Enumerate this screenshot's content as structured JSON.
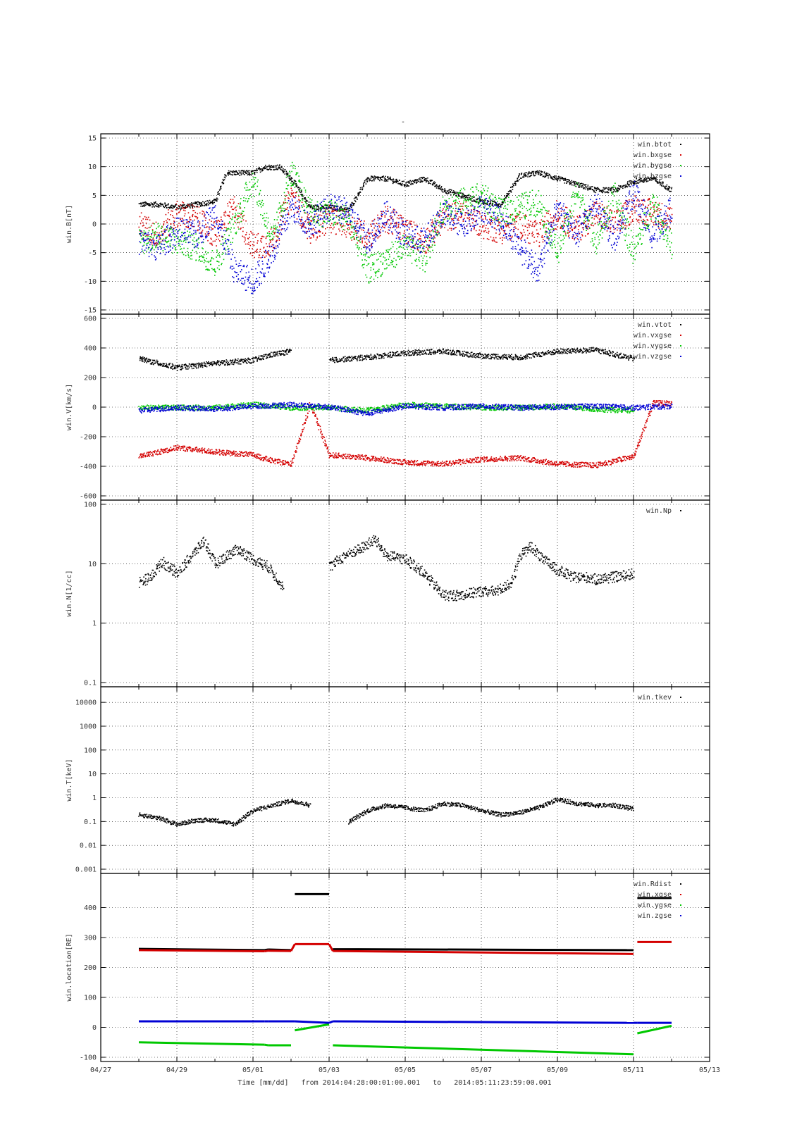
{
  "figure": {
    "title": "-",
    "xlabel_time": "Time [mm/dd]",
    "xlabel_from": "from 2014:04:28:00:01:00.001",
    "xlabel_to": "to",
    "xlabel_end": "2014:05:11:23:59:00.001",
    "x_ticks": [
      "04/27",
      "04/29",
      "05/01",
      "05/03",
      "05/05",
      "05/07",
      "05/09",
      "05/11",
      "05/13"
    ]
  },
  "colors": {
    "black": "#000000",
    "red": "#d40000",
    "green": "#00c800",
    "blue": "#0000d4",
    "grid": "#000000"
  },
  "chart_data": [
    {
      "type": "scatter",
      "ylabel": "win.B[nT]",
      "ylim": [
        -15,
        15
      ],
      "yscale": "linear",
      "y_ticks": [
        15,
        10,
        5,
        0,
        -5,
        -10,
        -15
      ],
      "x_unit": "day of month offset from 04/27",
      "xlim": [
        0,
        16
      ],
      "grid": true,
      "legend_position": "top-right",
      "series": [
        {
          "name": "win.btot",
          "color": "black",
          "x": [
            1,
            1.5,
            2,
            2.5,
            3,
            3.3,
            4,
            4.3,
            4.7,
            5,
            5.5,
            6,
            6.5,
            7,
            7.5,
            8,
            8.5,
            9,
            9.5,
            10,
            10.5,
            11,
            11.5,
            12,
            12.5,
            13,
            13.5,
            14,
            14.5,
            15
          ],
          "y": [
            3.5,
            3.5,
            3,
            3.5,
            4,
            9,
            9,
            10,
            10,
            8,
            3,
            3,
            2.5,
            8,
            8,
            7,
            8,
            6,
            5,
            4,
            3.5,
            8.5,
            9,
            8,
            7,
            6,
            6,
            7.5,
            8,
            6
          ]
        },
        {
          "name": "win.bxgse",
          "color": "red",
          "x": [
            1,
            1.5,
            2,
            2.5,
            3,
            3.5,
            4,
            4.5,
            5,
            5.5,
            6,
            6.5,
            7,
            7.5,
            8,
            8.5,
            9,
            9.5,
            10,
            10.5,
            11,
            11.5,
            12,
            12.5,
            13,
            13.5,
            14,
            14.5,
            15
          ],
          "y": [
            0,
            -2,
            2,
            1,
            -2,
            3,
            -4,
            -3,
            5,
            -1,
            1,
            0,
            -2,
            1,
            -1,
            -3,
            1,
            2,
            0,
            -1,
            0,
            -2,
            2,
            -1,
            2,
            0,
            3,
            2,
            1
          ]
        },
        {
          "name": "win.bygse",
          "color": "green",
          "x": [
            1,
            1.5,
            2,
            2.5,
            3,
            3.5,
            4,
            4.5,
            5,
            5.5,
            6,
            6.5,
            7,
            7.5,
            8,
            8.5,
            9,
            9.5,
            10,
            10.5,
            11,
            11.5,
            12,
            12.5,
            13,
            13.5,
            14,
            14.5,
            15
          ],
          "y": [
            -3,
            -2,
            -3,
            -4,
            -7,
            0,
            8,
            -3,
            9,
            2,
            2,
            1,
            -8,
            -6,
            -4,
            -6,
            3,
            4,
            5,
            2,
            3,
            4,
            -5,
            6,
            -3,
            5,
            -5,
            4,
            -4
          ]
        },
        {
          "name": "win.bzgse",
          "color": "blue",
          "x": [
            1,
            1.5,
            2,
            2.5,
            3,
            3.5,
            4,
            4.5,
            5,
            5.5,
            6,
            6.5,
            7,
            7.5,
            8,
            8.5,
            9,
            9.5,
            10,
            10.5,
            11,
            11.5,
            12,
            12.5,
            13,
            13.5,
            14,
            14.5,
            15
          ],
          "y": [
            -3,
            -4,
            -1,
            -2,
            2,
            -8,
            -10,
            -5,
            3,
            0,
            3,
            2,
            -3,
            2,
            -2,
            -3,
            2,
            0,
            3,
            1,
            -4,
            -8,
            3,
            -2,
            4,
            -3,
            6,
            -2,
            3
          ]
        }
      ]
    },
    {
      "type": "scatter",
      "ylabel": "win.V[km/s]",
      "ylim": [
        -600,
        600
      ],
      "yscale": "linear",
      "y_ticks": [
        600,
        400,
        200,
        0,
        -200,
        -400,
        -600
      ],
      "xlim": [
        0,
        16
      ],
      "grid": true,
      "legend_position": "top-right",
      "series": [
        {
          "name": "win.vtot",
          "color": "black",
          "x": [
            1,
            2,
            3,
            4,
            4.5,
            5,
            5.5,
            6,
            7,
            8,
            9,
            10,
            11,
            12,
            13,
            14
          ],
          "y": [
            330,
            270,
            300,
            320,
            360,
            380,
            null,
            320,
            340,
            370,
            380,
            350,
            340,
            380,
            390,
            330
          ],
          "gap_after": [
            5.8,
            5.9
          ]
        },
        {
          "name": "win.vxgse",
          "color": "red",
          "x": [
            1,
            2,
            3,
            4,
            4.5,
            5,
            5.5,
            6,
            7,
            8,
            9,
            10,
            11,
            12,
            13,
            14,
            14.5,
            15
          ],
          "y": [
            -330,
            -270,
            -300,
            -320,
            -360,
            -380,
            25,
            -320,
            -340,
            -370,
            -380,
            -350,
            -340,
            -380,
            -390,
            -330,
            30,
            30
          ]
        },
        {
          "name": "win.vygse",
          "color": "green",
          "x": [
            1,
            2,
            3,
            4,
            5,
            6,
            7,
            8,
            9,
            10,
            11,
            12,
            13,
            14
          ],
          "y": [
            0,
            0,
            0,
            20,
            0,
            0,
            -20,
            20,
            10,
            0,
            0,
            10,
            -10,
            -20
          ]
        },
        {
          "name": "win.vzgse",
          "color": "blue",
          "x": [
            1,
            2,
            3,
            4,
            5,
            6,
            7,
            8,
            9,
            10,
            11,
            12,
            13,
            14,
            15
          ],
          "y": [
            -20,
            0,
            -10,
            10,
            20,
            5,
            -40,
            10,
            0,
            10,
            0,
            5,
            10,
            0,
            10
          ]
        }
      ]
    },
    {
      "type": "scatter",
      "ylabel": "win.N[1/cc]",
      "ylim": [
        0.1,
        100
      ],
      "yscale": "log",
      "y_ticks": [
        100,
        10,
        1,
        0.1
      ],
      "xlim": [
        0,
        16
      ],
      "grid": true,
      "legend_position": "top-right",
      "series": [
        {
          "name": "win.Np",
          "color": "black",
          "x": [
            1,
            1.3,
            1.6,
            2,
            2.3,
            2.7,
            3,
            3.3,
            3.6,
            4,
            4.4,
            4.8,
            5,
            6,
            6.4,
            6.8,
            7.2,
            7.5,
            8,
            8.4,
            9,
            9.4,
            10,
            10.4,
            10.8,
            11,
            11.3,
            11.6,
            12,
            12.4,
            12.8,
            13,
            13.4,
            13.8,
            14
          ],
          "y": [
            5,
            6,
            11,
            7,
            12,
            25,
            10,
            14,
            18,
            12,
            9,
            4,
            null,
            9,
            14,
            18,
            26,
            14,
            12,
            8,
            3,
            3,
            3.5,
            3.5,
            5,
            14,
            20,
            12,
            8,
            6,
            6,
            5.5,
            6,
            6.5,
            7
          ]
        }
      ]
    },
    {
      "type": "scatter",
      "ylabel": "win.T[keV]",
      "ylim": [
        0.001,
        30000
      ],
      "yscale": "log",
      "y_ticks": [
        "10000",
        "1000",
        "100",
        "10",
        "1",
        "0.1",
        "0.01",
        "0.001"
      ],
      "xlim": [
        0,
        16
      ],
      "grid": true,
      "legend_position": "top-right",
      "series": [
        {
          "name": "win.tkev",
          "color": "black",
          "x": [
            1,
            1.5,
            2,
            2.5,
            3,
            3.5,
            4,
            4.5,
            5,
            5.5,
            6,
            6.5,
            7,
            7.5,
            8,
            8.5,
            9,
            9.5,
            10,
            10.5,
            11,
            11.5,
            12,
            12.5,
            13,
            13.5,
            14
          ],
          "y": [
            0.2,
            0.15,
            0.08,
            0.12,
            0.12,
            0.08,
            0.3,
            0.5,
            0.8,
            0.5,
            null,
            0.1,
            0.3,
            0.5,
            0.4,
            0.3,
            0.6,
            0.5,
            0.3,
            0.2,
            0.25,
            0.4,
            0.9,
            0.6,
            0.5,
            0.5,
            0.35
          ]
        }
      ]
    },
    {
      "type": "line",
      "ylabel": "win.location[RE]",
      "ylim": [
        -100,
        500
      ],
      "yscale": "linear",
      "y_ticks": [
        400,
        300,
        200,
        100,
        0,
        -100
      ],
      "xlim": [
        0,
        16
      ],
      "grid": true,
      "legend_position": "top-right",
      "series": [
        {
          "name": "win.Rdist",
          "color": "black",
          "x": [
            1,
            4.3,
            4.4,
            5,
            5.1,
            6,
            6.1,
            14,
            14.1,
            15
          ],
          "y": [
            262,
            258,
            260,
            258,
            445,
            445,
            261,
            258,
            432,
            432
          ]
        },
        {
          "name": "win.xgse",
          "color": "red",
          "x": [
            1,
            4.3,
            4.4,
            5,
            5.1,
            6,
            6.1,
            14,
            14.1,
            15
          ],
          "y": [
            258,
            254,
            256,
            255,
            278,
            278,
            255,
            245,
            285,
            285
          ]
        },
        {
          "name": "win.ygse",
          "color": "green",
          "x": [
            1,
            4.3,
            4.4,
            5,
            5.1,
            6,
            6.1,
            14,
            14.1,
            15
          ],
          "y": [
            -50,
            -58,
            -60,
            -60,
            -10,
            10,
            -60,
            -90,
            -20,
            5
          ]
        },
        {
          "name": "win.zgse",
          "color": "blue",
          "x": [
            1,
            4.3,
            4.4,
            5,
            5.1,
            6,
            6.1,
            14,
            14.1,
            15
          ],
          "y": [
            20,
            20,
            20,
            20,
            20,
            15,
            20,
            15,
            15,
            15
          ]
        }
      ]
    }
  ]
}
